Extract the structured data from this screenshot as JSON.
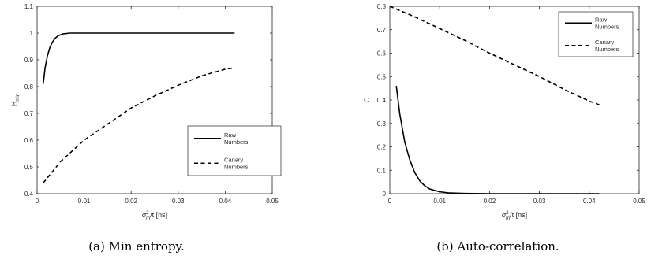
{
  "chart_data": [
    {
      "type": "line",
      "ylabel": "H",
      "ylabel_sub": "min",
      "xlabel_var": "σ",
      "xlabel_sup": "2",
      "xlabel_sub": "m",
      "xlabel_rest": "/t [ns]",
      "caption": "(a) Min entropy.",
      "xlim": [
        0,
        0.05
      ],
      "ylim": [
        0.4,
        1.1
      ],
      "xticks": [
        0,
        0.01,
        0.02,
        0.03,
        0.04,
        0.05
      ],
      "xtick_labels": [
        "0",
        "0.01",
        "0.02",
        "0.03",
        "0.04",
        "0.05"
      ],
      "yticks": [
        0.4,
        0.5,
        0.6,
        0.7,
        0.8,
        0.9,
        1,
        1.1
      ],
      "ytick_labels": [
        "0.4",
        "0.5",
        "0.6",
        "0.7",
        "0.8",
        "0.9",
        "1",
        "1.1"
      ],
      "legend_position": "lower-right",
      "grid": false,
      "series": [
        {
          "name_lines": [
            "Raw",
            "Numbers"
          ],
          "style": "solid",
          "x": [
            0.0013,
            0.0017,
            0.0022,
            0.0027,
            0.0032,
            0.0038,
            0.0045,
            0.0055,
            0.007,
            0.01,
            0.02,
            0.03,
            0.042
          ],
          "values": [
            0.81,
            0.87,
            0.915,
            0.945,
            0.965,
            0.98,
            0.99,
            0.997,
            1.0,
            1.0,
            1.0,
            1.0,
            1.0
          ]
        },
        {
          "name_lines": [
            "Canary",
            "Numbers"
          ],
          "style": "dashed",
          "x": [
            0.0013,
            0.005,
            0.01,
            0.015,
            0.02,
            0.025,
            0.03,
            0.035,
            0.04,
            0.042
          ],
          "values": [
            0.44,
            0.52,
            0.6,
            0.66,
            0.72,
            0.765,
            0.805,
            0.84,
            0.865,
            0.87
          ]
        }
      ]
    },
    {
      "type": "line",
      "ylabel": "C",
      "ylabel_sub": "",
      "xlabel_var": "σ",
      "xlabel_sup": "2",
      "xlabel_sub": "m",
      "xlabel_rest": "/t [ns]",
      "caption": "(b) Auto-correlation.",
      "xlim": [
        0,
        0.05
      ],
      "ylim": [
        0,
        0.8
      ],
      "xticks": [
        0,
        0.01,
        0.02,
        0.03,
        0.04,
        0.05
      ],
      "xtick_labels": [
        "0",
        "0.01",
        "0.02",
        "0.03",
        "0.04",
        "0.05"
      ],
      "yticks": [
        0,
        0.1,
        0.2,
        0.3,
        0.4,
        0.5,
        0.6,
        0.7,
        0.8
      ],
      "ytick_labels": [
        "0",
        "0.1",
        "0.2",
        "0.3",
        "0.4",
        "0.5",
        "0.6",
        "0.7",
        "0.8"
      ],
      "legend_position": "top-right",
      "grid": false,
      "series": [
        {
          "name_lines": [
            "Raw",
            "Numbers"
          ],
          "style": "solid",
          "x": [
            0.0013,
            0.002,
            0.003,
            0.004,
            0.005,
            0.006,
            0.007,
            0.008,
            0.01,
            0.012,
            0.015,
            0.02,
            0.03,
            0.042
          ],
          "values": [
            0.46,
            0.34,
            0.22,
            0.145,
            0.09,
            0.055,
            0.034,
            0.02,
            0.008,
            0.003,
            0.001,
            0.0,
            0.0,
            0.0
          ]
        },
        {
          "name_lines": [
            "Canary",
            "Numbers"
          ],
          "style": "dashed",
          "x": [
            0.0,
            0.005,
            0.01,
            0.015,
            0.02,
            0.025,
            0.03,
            0.035,
            0.04,
            0.042
          ],
          "values": [
            0.8,
            0.755,
            0.705,
            0.655,
            0.6,
            0.55,
            0.5,
            0.445,
            0.395,
            0.38
          ]
        }
      ]
    }
  ]
}
